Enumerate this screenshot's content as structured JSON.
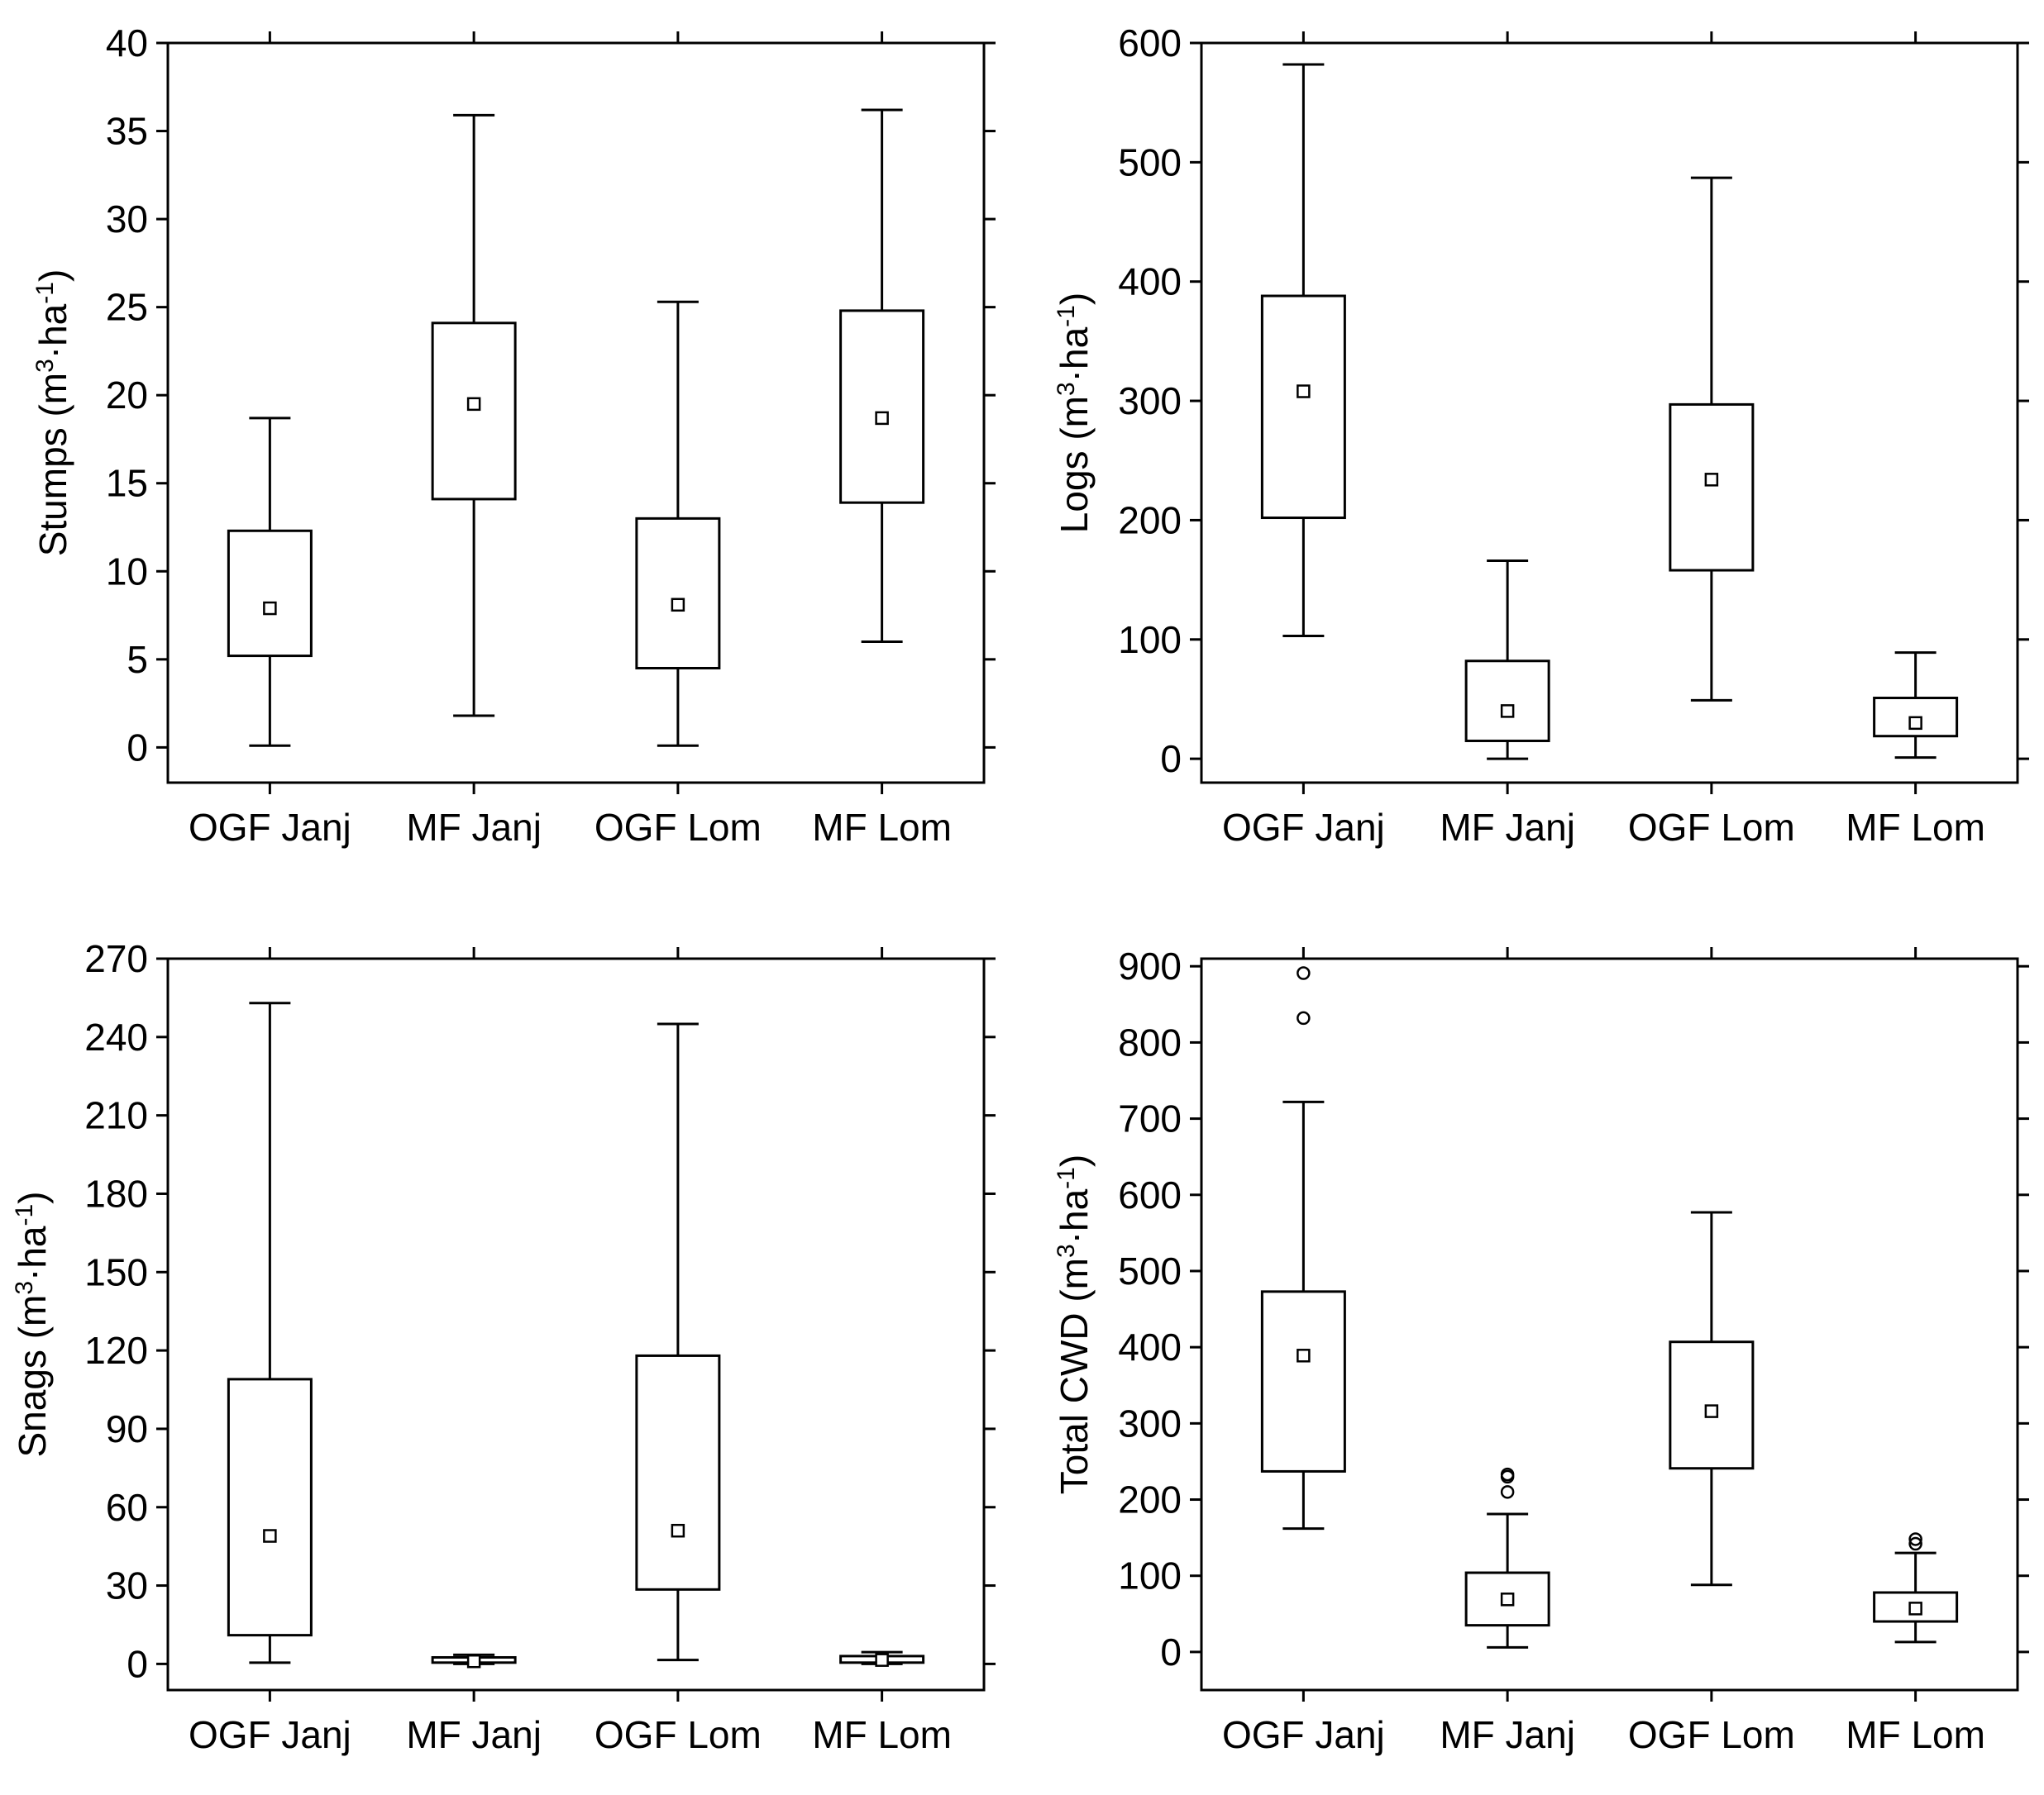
{
  "chart_data": [
    {
      "type": "box",
      "id": "stumps",
      "ylabel": {
        "pre": "Stumps (m",
        "sup1": "3",
        "mid": "·ha",
        "sup2": "-1",
        "post": ")"
      },
      "ylim": [
        -2,
        40
      ],
      "yticks": [
        0,
        5,
        10,
        15,
        20,
        25,
        30,
        35,
        40
      ],
      "categories": [
        "OGF Janj",
        "MF Janj",
        "OGF Lom",
        "MF Lom"
      ],
      "boxes": [
        {
          "min": 0.1,
          "q1": 5.2,
          "median": 7.9,
          "q3": 12.3,
          "max": 18.7,
          "outliers": []
        },
        {
          "min": 1.8,
          "q1": 14.1,
          "median": 19.5,
          "q3": 24.1,
          "max": 35.9,
          "outliers": []
        },
        {
          "min": 0.1,
          "q1": 4.5,
          "median": 8.1,
          "q3": 13.0,
          "max": 25.3,
          "outliers": []
        },
        {
          "min": 6.0,
          "q1": 13.9,
          "median": 18.7,
          "q3": 24.8,
          "max": 36.2,
          "outliers": []
        }
      ]
    },
    {
      "type": "box",
      "id": "logs",
      "ylabel": {
        "pre": "Logs (m",
        "sup1": "3",
        "mid": "·ha",
        "sup2": "-1",
        "post": ")"
      },
      "ylim": [
        -20,
        600
      ],
      "yticks": [
        0,
        100,
        200,
        300,
        400,
        500,
        600
      ],
      "categories": [
        "OGF Janj",
        "MF Janj",
        "OGF Lom",
        "MF Lom"
      ],
      "boxes": [
        {
          "min": 103,
          "q1": 202,
          "median": 308,
          "q3": 388,
          "max": 582,
          "outliers": []
        },
        {
          "min": 0,
          "q1": 15,
          "median": 40,
          "q3": 82,
          "max": 166,
          "outliers": []
        },
        {
          "min": 49,
          "q1": 158,
          "median": 234,
          "q3": 297,
          "max": 487,
          "outliers": []
        },
        {
          "min": 1,
          "q1": 19,
          "median": 30,
          "q3": 51,
          "max": 89,
          "outliers": []
        }
      ]
    },
    {
      "type": "box",
      "id": "snags",
      "ylabel": {
        "pre": "Snags (m",
        "sup1": "3",
        "mid": "·ha",
        "sup2": "-1",
        "post": ")"
      },
      "ylim": [
        -10,
        270
      ],
      "yticks": [
        0,
        30,
        60,
        90,
        120,
        150,
        180,
        210,
        240,
        270
      ],
      "categories": [
        "OGF Janj",
        "MF Janj",
        "OGF Lom",
        "MF Lom"
      ],
      "boxes": [
        {
          "min": 0.5,
          "q1": 11,
          "median": 49,
          "q3": 109,
          "max": 253,
          "outliers": []
        },
        {
          "min": 0,
          "q1": 0.5,
          "median": 1,
          "q3": 2.5,
          "max": 3.5,
          "outliers": []
        },
        {
          "min": 1.5,
          "q1": 28.5,
          "median": 51,
          "q3": 118,
          "max": 245,
          "outliers": []
        },
        {
          "min": 0,
          "q1": 0.5,
          "median": 1.5,
          "q3": 3,
          "max": 4.5,
          "outliers": []
        }
      ]
    },
    {
      "type": "box",
      "id": "total-cwd",
      "ylabel": {
        "pre": "Total CWD (m",
        "sup1": "3",
        "mid": "·ha",
        "sup2": "-1",
        "post": ")"
      },
      "ylim": [
        -50,
        910
      ],
      "yticks": [
        0,
        100,
        200,
        300,
        400,
        500,
        600,
        700,
        800,
        900
      ],
      "categories": [
        "OGF Janj",
        "MF Janj",
        "OGF Lom",
        "MF Lom"
      ],
      "boxes": [
        {
          "min": 162,
          "q1": 237,
          "median": 389,
          "q3": 473,
          "max": 722,
          "outliers": [
            832,
            891
          ]
        },
        {
          "min": 6,
          "q1": 35,
          "median": 69,
          "q3": 104,
          "max": 181,
          "outliers": [
            210,
            230,
            233
          ]
        },
        {
          "min": 88,
          "q1": 241,
          "median": 316,
          "q3": 407,
          "max": 577,
          "outliers": []
        },
        {
          "min": 13,
          "q1": 40,
          "median": 57,
          "q3": 78,
          "max": 130,
          "outliers": [
            142,
            148
          ]
        }
      ]
    }
  ]
}
